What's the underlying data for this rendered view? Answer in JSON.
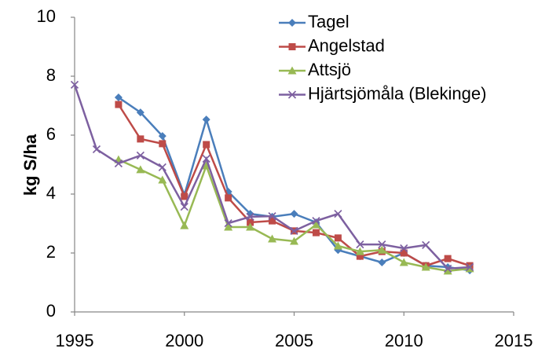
{
  "chart_data": {
    "type": "line",
    "y_label": "kg S/ha",
    "x": [
      1995,
      1996,
      1997,
      1998,
      1999,
      2000,
      2001,
      2002,
      2003,
      2004,
      2005,
      2006,
      2007,
      2008,
      2009,
      2010,
      2011,
      2012,
      2013
    ],
    "xlim": [
      1995,
      2015
    ],
    "xticks": [
      1995,
      2000,
      2005,
      2010,
      2015
    ],
    "ylim": [
      0,
      10
    ],
    "yticks": [
      0,
      2,
      4,
      6,
      8,
      10
    ],
    "grid": false,
    "legend": "top-right",
    "series": [
      {
        "name": "Tagel",
        "color": "#4a7ebb",
        "marker": "diamond",
        "values": [
          null,
          null,
          7.28,
          6.77,
          5.97,
          3.97,
          6.53,
          4.08,
          3.33,
          3.23,
          3.33,
          3.04,
          2.1,
          1.89,
          1.68,
          2.0,
          1.57,
          1.52,
          1.41
        ]
      },
      {
        "name": "Angelstad",
        "color": "#be4b48",
        "marker": "square",
        "values": [
          null,
          null,
          7.04,
          5.87,
          5.71,
          3.92,
          5.68,
          3.87,
          3.04,
          3.09,
          2.75,
          2.69,
          2.51,
          1.89,
          2.05,
          2.0,
          1.57,
          1.81,
          1.57
        ]
      },
      {
        "name": "Attsjö",
        "color": "#98b954",
        "marker": "triangle",
        "values": [
          null,
          null,
          5.17,
          4.83,
          4.48,
          2.93,
          4.96,
          2.88,
          2.88,
          2.48,
          2.4,
          2.96,
          2.24,
          2.05,
          2.1,
          1.68,
          1.52,
          1.39,
          1.47
        ]
      },
      {
        "name": "Hjärtsjömåla (Blekinge)",
        "color": "#7d60a0",
        "marker": "x",
        "values": [
          7.71,
          5.52,
          5.04,
          5.31,
          4.91,
          3.57,
          5.2,
          3.01,
          3.23,
          3.25,
          2.75,
          3.09,
          3.33,
          2.29,
          2.29,
          2.16,
          2.27,
          1.47,
          1.52
        ]
      }
    ]
  }
}
